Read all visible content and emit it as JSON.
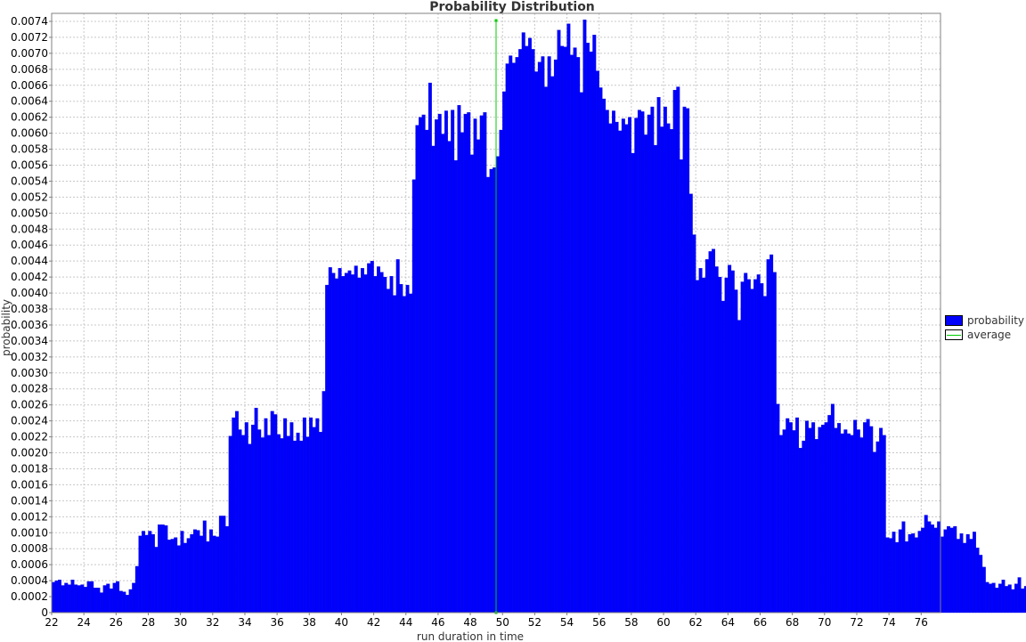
{
  "chart_data": {
    "type": "bar",
    "title": "Probability Distribution",
    "xlabel": "run duration in time",
    "ylabel": "probability",
    "xlim": [
      22,
      77.2
    ],
    "ylim": [
      0,
      0.0075
    ],
    "bin_width": 0.2,
    "x_start": 22,
    "x_ticks": [
      22,
      24,
      26,
      28,
      30,
      32,
      34,
      36,
      38,
      40,
      42,
      44,
      46,
      48,
      50,
      52,
      54,
      56,
      58,
      60,
      62,
      64,
      66,
      68,
      70,
      72,
      74,
      76
    ],
    "y_ticks": [
      0,
      0.0002,
      0.0004,
      0.0006,
      0.0008,
      0.001,
      0.0012,
      0.0014,
      0.0016,
      0.0018,
      0.002,
      0.0022,
      0.0024,
      0.0026,
      0.0028,
      0.003,
      0.0032,
      0.0034,
      0.0036,
      0.0038,
      0.004,
      0.0042,
      0.0044,
      0.0046,
      0.0048,
      0.005,
      0.0052,
      0.0054,
      0.0056,
      0.0058,
      0.006,
      0.0062,
      0.0064,
      0.0066,
      0.0068,
      0.007,
      0.0072,
      0.0074
    ],
    "y_tick_labels": [
      "0",
      "0.0002",
      "0.0004",
      "0.0006",
      "0.0008",
      "0.0010",
      "0.0012",
      "0.0014",
      "0.0016",
      "0.0018",
      "0.0020",
      "0.0022",
      "0.0024",
      "0.0026",
      "0.0028",
      "0.0030",
      "0.0032",
      "0.0034",
      "0.0036",
      "0.0038",
      "0.0040",
      "0.0042",
      "0.0044",
      "0.0046",
      "0.0048",
      "0.0050",
      "0.0052",
      "0.0054",
      "0.0056",
      "0.0058",
      "0.0060",
      "0.0062",
      "0.0064",
      "0.0066",
      "0.0068",
      "0.0070",
      "0.0072",
      "0.0074"
    ],
    "grid": true,
    "legend_position": "right",
    "series": [
      {
        "name": "probability",
        "color": "#0000ff",
        "values": [
          0.00038,
          0.0004,
          0.00041,
          0.00034,
          0.00037,
          0.00035,
          0.00041,
          0.00035,
          0.00034,
          0.00035,
          0.00032,
          0.00039,
          0.00039,
          0.00031,
          0.00031,
          0.00025,
          0.00034,
          0.00036,
          0.0003,
          0.00037,
          0.00039,
          0.00027,
          0.00026,
          0.00022,
          0.00029,
          0.00037,
          0.00058,
          0.00096,
          0.00102,
          0.00097,
          0.00102,
          0.00098,
          0.00082,
          0.0011,
          0.0011,
          0.00109,
          0.00091,
          0.00092,
          0.00094,
          0.00084,
          0.00102,
          0.00087,
          0.00093,
          0.00098,
          0.00104,
          0.00103,
          0.00096,
          0.00115,
          0.00089,
          0.00104,
          0.00096,
          0.00095,
          0.00121,
          0.00121,
          0.00108,
          0.00221,
          0.00244,
          0.00252,
          0.00229,
          0.00222,
          0.00238,
          0.00211,
          0.00235,
          0.00256,
          0.00229,
          0.00219,
          0.00243,
          0.00222,
          0.00252,
          0.00248,
          0.00223,
          0.00218,
          0.00243,
          0.00221,
          0.00238,
          0.00215,
          0.00225,
          0.00215,
          0.00244,
          0.0022,
          0.00244,
          0.00232,
          0.00243,
          0.00226,
          0.00277,
          0.0041,
          0.00432,
          0.00425,
          0.00418,
          0.00431,
          0.00421,
          0.00425,
          0.00428,
          0.00423,
          0.00434,
          0.00419,
          0.00431,
          0.00423,
          0.00437,
          0.0044,
          0.00421,
          0.00433,
          0.00426,
          0.0042,
          0.00405,
          0.00421,
          0.00397,
          0.00442,
          0.00411,
          0.00396,
          0.0041,
          0.00399,
          0.00542,
          0.0061,
          0.0062,
          0.00623,
          0.00604,
          0.00663,
          0.00584,
          0.00617,
          0.00624,
          0.00599,
          0.00628,
          0.0059,
          0.00629,
          0.00566,
          0.00635,
          0.00601,
          0.00624,
          0.00626,
          0.00573,
          0.00618,
          0.00592,
          0.00622,
          0.00626,
          0.00545,
          0.00555,
          0.00557,
          0.00571,
          0.00604,
          0.00652,
          0.00687,
          0.00697,
          0.00688,
          0.00695,
          0.00705,
          0.00726,
          0.00709,
          0.00719,
          0.00705,
          0.00677,
          0.00689,
          0.00696,
          0.00658,
          0.00696,
          0.00671,
          0.00692,
          0.00729,
          0.00709,
          0.00708,
          0.00737,
          0.00698,
          0.00707,
          0.00695,
          0.00651,
          0.00742,
          0.00713,
          0.00702,
          0.00723,
          0.00678,
          0.00657,
          0.00643,
          0.00629,
          0.00612,
          0.00628,
          0.00614,
          0.00603,
          0.00618,
          0.00611,
          0.0062,
          0.00575,
          0.00619,
          0.00629,
          0.00627,
          0.00598,
          0.00623,
          0.00633,
          0.00585,
          0.00645,
          0.00608,
          0.00633,
          0.00612,
          0.00605,
          0.00654,
          0.00658,
          0.00567,
          0.00633,
          0.00631,
          0.00524,
          0.00473,
          0.00416,
          0.00431,
          0.00419,
          0.00442,
          0.00452,
          0.00455,
          0.00433,
          0.0042,
          0.0039,
          0.00419,
          0.00435,
          0.00428,
          0.00404,
          0.00366,
          0.00414,
          0.00425,
          0.00417,
          0.00405,
          0.00417,
          0.00423,
          0.00412,
          0.00396,
          0.00442,
          0.00448,
          0.00426,
          0.00261,
          0.00222,
          0.00229,
          0.00243,
          0.00238,
          0.00228,
          0.00244,
          0.00206,
          0.00215,
          0.0024,
          0.00231,
          0.00238,
          0.00217,
          0.00232,
          0.00235,
          0.00238,
          0.00247,
          0.00261,
          0.00231,
          0.00237,
          0.00224,
          0.00229,
          0.00224,
          0.00222,
          0.00241,
          0.00229,
          0.00219,
          0.00238,
          0.00242,
          0.00233,
          0.00201,
          0.00214,
          0.00231,
          0.00222,
          0.00094,
          0.00093,
          0.00101,
          0.00088,
          0.00104,
          0.00114,
          0.00089,
          0.00098,
          0.00099,
          0.00094,
          0.00102,
          0.00106,
          0.00122,
          0.00114,
          0.0011,
          0.00106,
          0.00114,
          0.00095,
          0.00104,
          0.00108,
          0.00106,
          0.00108,
          0.00092,
          0.00099,
          0.00087,
          0.00098,
          0.00092,
          0.00101,
          0.00081,
          0.00072,
          0.00057,
          0.00038,
          0.00036,
          0.00037,
          0.00031,
          0.00036,
          0.00041,
          0.00033,
          0.00035,
          0.00029,
          0.00036,
          0.00044,
          0.0003,
          0.00033,
          0.00034,
          0.00035,
          0.0004,
          0.00034,
          0.00032,
          0.00037,
          0.00045,
          0.00039,
          0.00036,
          0.00032,
          0.00024,
          0.0003
        ]
      }
    ],
    "average": {
      "name": "average",
      "x": 49.6,
      "color": "#00cc00"
    }
  }
}
